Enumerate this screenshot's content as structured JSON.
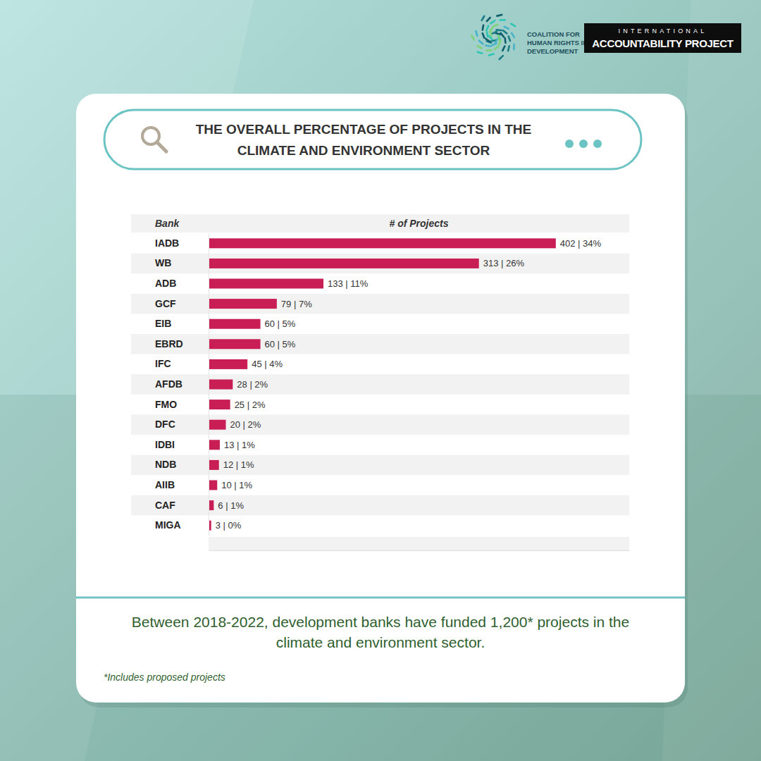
{
  "header": {
    "logos": [
      "COALITION FOR HUMAN RIGHTS IN DEVELOPMENT",
      "INTERNATIONAL ACCOUNTABILITY PROJECT"
    ]
  },
  "chart_data": {
    "type": "bar",
    "title": "THE OVERALL PERCENTAGE OF PROJECTS IN THE CLIMATE AND ENVIRONMENT SECTOR",
    "ylabel": "Bank",
    "xlabel": "# of Projects",
    "categories": [
      "IADB",
      "WB",
      "ADB",
      "GCF",
      "EIB",
      "EBRD",
      "IFC",
      "AFDB",
      "FMO",
      "DFC",
      "IDBI",
      "NDB",
      "AIIB",
      "CAF",
      "MIGA"
    ],
    "values": [
      402,
      313,
      133,
      79,
      60,
      60,
      45,
      28,
      25,
      20,
      13,
      12,
      10,
      6,
      3
    ],
    "value_labels": [
      "402 | 34%",
      "313 | 26%",
      "133 | 11%",
      "79 | 7%",
      "60 | 5%",
      "60 | 5%",
      "45 | 4%",
      "28 | 2%",
      "25 | 2%",
      "20 | 2%",
      "13 | 1%",
      "12 | 1%",
      "10 | 1%",
      "6 | 1%",
      "3 | 0%"
    ],
    "color": "#c81e55",
    "orientation": "horizontal",
    "data_labels": true,
    "tick_labels": "y",
    "xlim": [
      0,
      487
    ],
    "annotations": [
      "Between 2018-2022, development banks have funded 1,200* projects in the climate and environment sector.",
      "*Includes proposed projects"
    ]
  }
}
